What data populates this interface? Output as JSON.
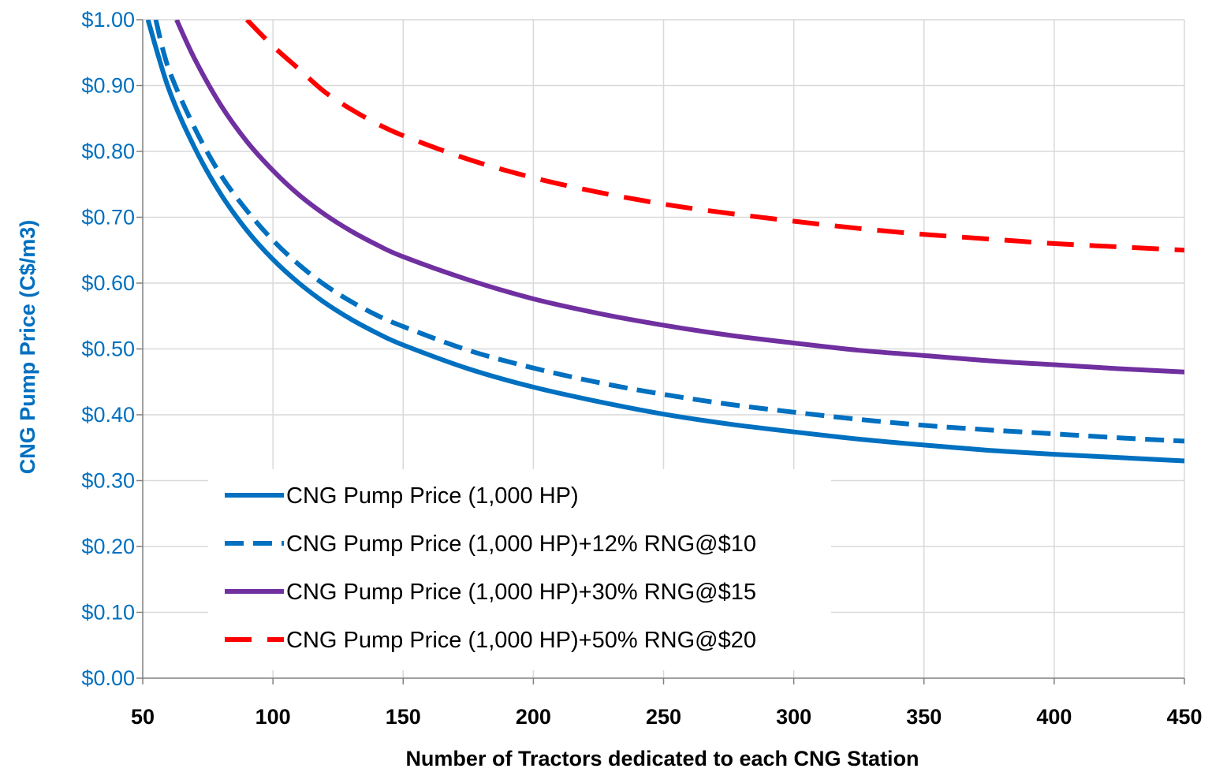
{
  "chart_data": {
    "type": "line",
    "xlabel": "Number of Tractors dedicated to each CNG Station",
    "ylabel": "CNG Pump Price (C$/m3)",
    "xlim": [
      50,
      450
    ],
    "ylim": [
      0,
      1.0
    ],
    "x_ticks": [
      50,
      100,
      150,
      200,
      250,
      300,
      350,
      400,
      450
    ],
    "x_tick_labels": [
      "50",
      "100",
      "150",
      "200",
      "250",
      "300",
      "350",
      "400",
      "450"
    ],
    "y_ticks": [
      0,
      0.1,
      0.2,
      0.3,
      0.4,
      0.5,
      0.6,
      0.7,
      0.8,
      0.9,
      1.0
    ],
    "y_tick_labels": [
      "$0.00",
      "$0.10",
      "$0.20",
      "$0.30",
      "$0.40",
      "$0.50",
      "$0.60",
      "$0.70",
      "$0.80",
      "$0.90",
      "$1.00"
    ],
    "grid": true,
    "legend_placement": "lower-left",
    "colors": {
      "ylabel": "#0070c0",
      "ytick": "#0070c0",
      "grid": "#d9d9d9",
      "axis": "#808080"
    },
    "series": [
      {
        "name": "CNG Pump Price (1,000 HP)",
        "color": "#0070c0",
        "dash": "solid",
        "points": [
          [
            52,
            1.0
          ],
          [
            60,
            0.895
          ],
          [
            70,
            0.805
          ],
          [
            80,
            0.735
          ],
          [
            90,
            0.68
          ],
          [
            100,
            0.636
          ],
          [
            110,
            0.6
          ],
          [
            120,
            0.57
          ],
          [
            130,
            0.545
          ],
          [
            140,
            0.524
          ],
          [
            150,
            0.506
          ],
          [
            175,
            0.47
          ],
          [
            200,
            0.442
          ],
          [
            225,
            0.42
          ],
          [
            250,
            0.401
          ],
          [
            275,
            0.386
          ],
          [
            300,
            0.374
          ],
          [
            325,
            0.363
          ],
          [
            350,
            0.354
          ],
          [
            375,
            0.346
          ],
          [
            400,
            0.34
          ],
          [
            425,
            0.335
          ],
          [
            450,
            0.33
          ]
        ]
      },
      {
        "name": "CNG Pump Price (1,000 HP)+12% RNG@$10",
        "color": "#0070c0",
        "dash": "dashed",
        "points": [
          [
            55,
            1.0
          ],
          [
            60,
            0.925
          ],
          [
            70,
            0.835
          ],
          [
            80,
            0.764
          ],
          [
            90,
            0.71
          ],
          [
            100,
            0.665
          ],
          [
            110,
            0.628
          ],
          [
            120,
            0.597
          ],
          [
            130,
            0.572
          ],
          [
            140,
            0.551
          ],
          [
            150,
            0.534
          ],
          [
            175,
            0.498
          ],
          [
            200,
            0.471
          ],
          [
            225,
            0.449
          ],
          [
            250,
            0.431
          ],
          [
            275,
            0.416
          ],
          [
            300,
            0.404
          ],
          [
            325,
            0.393
          ],
          [
            350,
            0.384
          ],
          [
            375,
            0.377
          ],
          [
            400,
            0.371
          ],
          [
            425,
            0.365
          ],
          [
            450,
            0.36
          ]
        ]
      },
      {
        "name": "CNG Pump Price (1,000 HP)+30% RNG@$15",
        "color": "#7030a0",
        "dash": "solid",
        "points": [
          [
            63,
            1.0
          ],
          [
            70,
            0.94
          ],
          [
            80,
            0.87
          ],
          [
            90,
            0.815
          ],
          [
            100,
            0.771
          ],
          [
            110,
            0.734
          ],
          [
            120,
            0.704
          ],
          [
            130,
            0.679
          ],
          [
            140,
            0.658
          ],
          [
            150,
            0.64
          ],
          [
            175,
            0.605
          ],
          [
            200,
            0.576
          ],
          [
            225,
            0.554
          ],
          [
            250,
            0.536
          ],
          [
            275,
            0.521
          ],
          [
            300,
            0.509
          ],
          [
            325,
            0.498
          ],
          [
            350,
            0.49
          ],
          [
            375,
            0.482
          ],
          [
            400,
            0.476
          ],
          [
            425,
            0.47
          ],
          [
            450,
            0.465
          ]
        ]
      },
      {
        "name": "CNG Pump Price (1,000 HP)+50% RNG@$20",
        "color": "#ff0000",
        "dash": "dashed",
        "points": [
          [
            90,
            1.0
          ],
          [
            100,
            0.96
          ],
          [
            110,
            0.925
          ],
          [
            120,
            0.89
          ],
          [
            130,
            0.864
          ],
          [
            140,
            0.842
          ],
          [
            150,
            0.824
          ],
          [
            175,
            0.788
          ],
          [
            200,
            0.76
          ],
          [
            225,
            0.738
          ],
          [
            250,
            0.72
          ],
          [
            275,
            0.706
          ],
          [
            300,
            0.694
          ],
          [
            325,
            0.683
          ],
          [
            350,
            0.674
          ],
          [
            375,
            0.667
          ],
          [
            400,
            0.66
          ],
          [
            425,
            0.655
          ],
          [
            450,
            0.65
          ]
        ]
      }
    ]
  }
}
